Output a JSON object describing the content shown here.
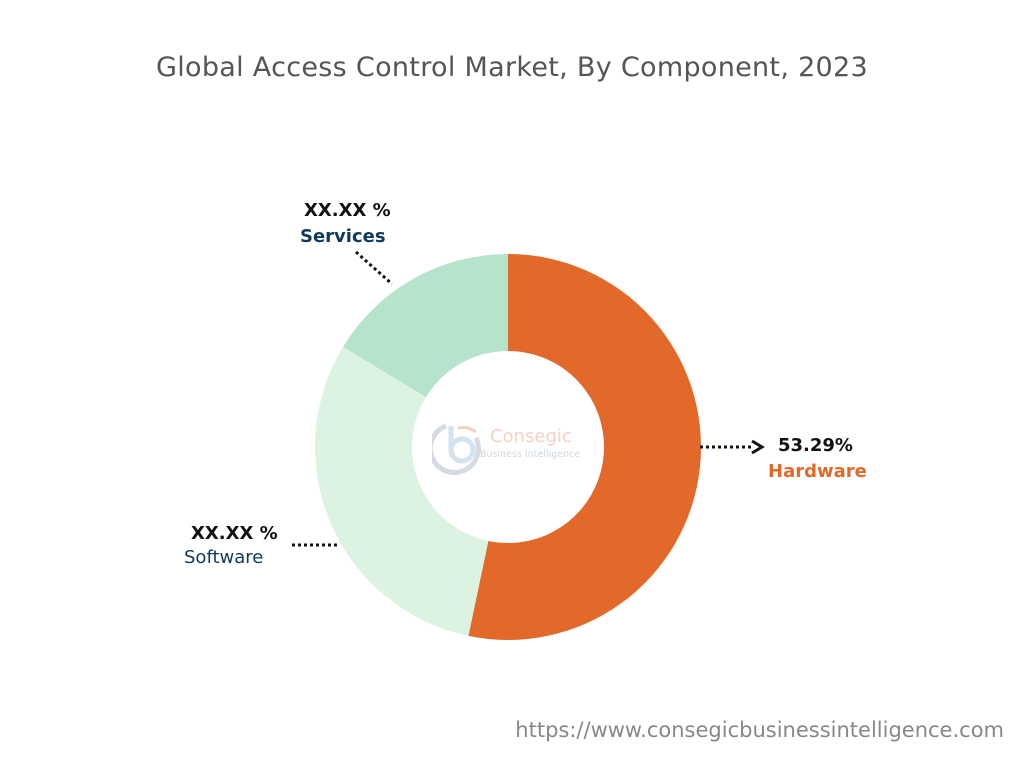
{
  "chart_data": {
    "type": "pie",
    "variant": "donut",
    "title": "Global Access Control Market, By Component, 2023",
    "slices": [
      {
        "name": "Hardware",
        "value": 53.29,
        "label": "53.29%",
        "color": "#E3692A",
        "label_color": "#E3692A"
      },
      {
        "name": "Software",
        "value": 30.4,
        "label": "XX.XX %",
        "color": "#DCF3E1",
        "label_color": "#0E3A5F"
      },
      {
        "name": "Services",
        "value": 16.31,
        "label": "XX.XX %",
        "color": "#B6E3CB",
        "label_color": "#0E3A5F"
      }
    ],
    "start_angle": "top, clockwise",
    "legend": "none"
  },
  "watermark": {
    "brand": "Consegic",
    "sub": "Business Intelligence"
  },
  "footer": {
    "url": "https://www.consegicbusinessintelligence.com"
  }
}
